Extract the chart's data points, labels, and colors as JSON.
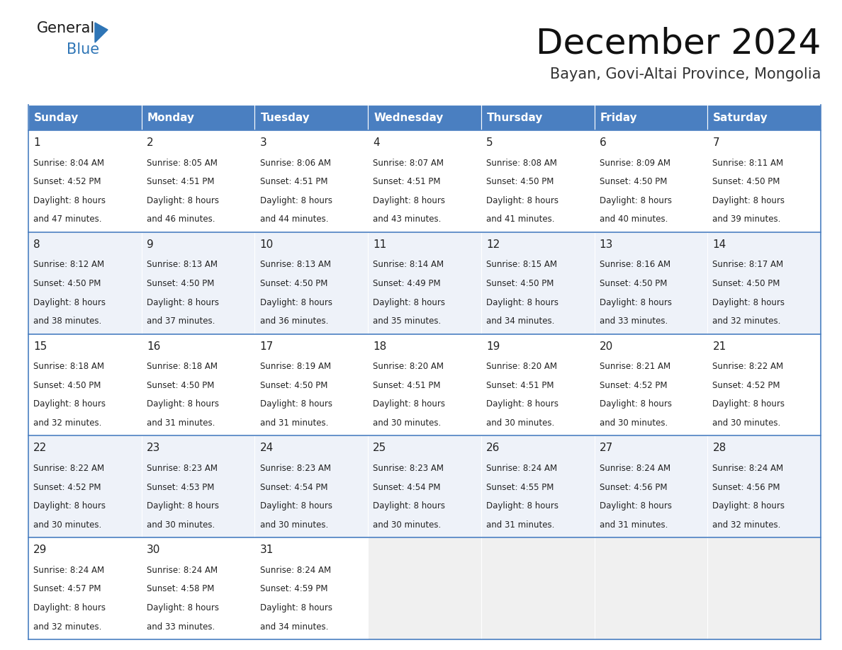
{
  "title": "December 2024",
  "subtitle": "Bayan, Govi-Altai Province, Mongolia",
  "header_bg_color": "#4A7FC1",
  "header_text_color": "#FFFFFF",
  "cell_border_color": "#4A7FC1",
  "row_bg_colors": [
    "#FFFFFF",
    "#EEF2F9"
  ],
  "last_row_empty_bg": "#F0F0F0",
  "text_color": "#333333",
  "day_names": [
    "Sunday",
    "Monday",
    "Tuesday",
    "Wednesday",
    "Thursday",
    "Friday",
    "Saturday"
  ],
  "weeks": [
    [
      {
        "day": 1,
        "sunrise": "8:04 AM",
        "sunset": "4:52 PM",
        "daylight": "8 hours\nand 47 minutes."
      },
      {
        "day": 2,
        "sunrise": "8:05 AM",
        "sunset": "4:51 PM",
        "daylight": "8 hours\nand 46 minutes."
      },
      {
        "day": 3,
        "sunrise": "8:06 AM",
        "sunset": "4:51 PM",
        "daylight": "8 hours\nand 44 minutes."
      },
      {
        "day": 4,
        "sunrise": "8:07 AM",
        "sunset": "4:51 PM",
        "daylight": "8 hours\nand 43 minutes."
      },
      {
        "day": 5,
        "sunrise": "8:08 AM",
        "sunset": "4:50 PM",
        "daylight": "8 hours\nand 41 minutes."
      },
      {
        "day": 6,
        "sunrise": "8:09 AM",
        "sunset": "4:50 PM",
        "daylight": "8 hours\nand 40 minutes."
      },
      {
        "day": 7,
        "sunrise": "8:11 AM",
        "sunset": "4:50 PM",
        "daylight": "8 hours\nand 39 minutes."
      }
    ],
    [
      {
        "day": 8,
        "sunrise": "8:12 AM",
        "sunset": "4:50 PM",
        "daylight": "8 hours\nand 38 minutes."
      },
      {
        "day": 9,
        "sunrise": "8:13 AM",
        "sunset": "4:50 PM",
        "daylight": "8 hours\nand 37 minutes."
      },
      {
        "day": 10,
        "sunrise": "8:13 AM",
        "sunset": "4:50 PM",
        "daylight": "8 hours\nand 36 minutes."
      },
      {
        "day": 11,
        "sunrise": "8:14 AM",
        "sunset": "4:49 PM",
        "daylight": "8 hours\nand 35 minutes."
      },
      {
        "day": 12,
        "sunrise": "8:15 AM",
        "sunset": "4:50 PM",
        "daylight": "8 hours\nand 34 minutes."
      },
      {
        "day": 13,
        "sunrise": "8:16 AM",
        "sunset": "4:50 PM",
        "daylight": "8 hours\nand 33 minutes."
      },
      {
        "day": 14,
        "sunrise": "8:17 AM",
        "sunset": "4:50 PM",
        "daylight": "8 hours\nand 32 minutes."
      }
    ],
    [
      {
        "day": 15,
        "sunrise": "8:18 AM",
        "sunset": "4:50 PM",
        "daylight": "8 hours\nand 32 minutes."
      },
      {
        "day": 16,
        "sunrise": "8:18 AM",
        "sunset": "4:50 PM",
        "daylight": "8 hours\nand 31 minutes."
      },
      {
        "day": 17,
        "sunrise": "8:19 AM",
        "sunset": "4:50 PM",
        "daylight": "8 hours\nand 31 minutes."
      },
      {
        "day": 18,
        "sunrise": "8:20 AM",
        "sunset": "4:51 PM",
        "daylight": "8 hours\nand 30 minutes."
      },
      {
        "day": 19,
        "sunrise": "8:20 AM",
        "sunset": "4:51 PM",
        "daylight": "8 hours\nand 30 minutes."
      },
      {
        "day": 20,
        "sunrise": "8:21 AM",
        "sunset": "4:52 PM",
        "daylight": "8 hours\nand 30 minutes."
      },
      {
        "day": 21,
        "sunrise": "8:22 AM",
        "sunset": "4:52 PM",
        "daylight": "8 hours\nand 30 minutes."
      }
    ],
    [
      {
        "day": 22,
        "sunrise": "8:22 AM",
        "sunset": "4:52 PM",
        "daylight": "8 hours\nand 30 minutes."
      },
      {
        "day": 23,
        "sunrise": "8:23 AM",
        "sunset": "4:53 PM",
        "daylight": "8 hours\nand 30 minutes."
      },
      {
        "day": 24,
        "sunrise": "8:23 AM",
        "sunset": "4:54 PM",
        "daylight": "8 hours\nand 30 minutes."
      },
      {
        "day": 25,
        "sunrise": "8:23 AM",
        "sunset": "4:54 PM",
        "daylight": "8 hours\nand 30 minutes."
      },
      {
        "day": 26,
        "sunrise": "8:24 AM",
        "sunset": "4:55 PM",
        "daylight": "8 hours\nand 31 minutes."
      },
      {
        "day": 27,
        "sunrise": "8:24 AM",
        "sunset": "4:56 PM",
        "daylight": "8 hours\nand 31 minutes."
      },
      {
        "day": 28,
        "sunrise": "8:24 AM",
        "sunset": "4:56 PM",
        "daylight": "8 hours\nand 32 minutes."
      }
    ],
    [
      {
        "day": 29,
        "sunrise": "8:24 AM",
        "sunset": "4:57 PM",
        "daylight": "8 hours\nand 32 minutes."
      },
      {
        "day": 30,
        "sunrise": "8:24 AM",
        "sunset": "4:58 PM",
        "daylight": "8 hours\nand 33 minutes."
      },
      {
        "day": 31,
        "sunrise": "8:24 AM",
        "sunset": "4:59 PM",
        "daylight": "8 hours\nand 34 minutes."
      },
      null,
      null,
      null,
      null
    ]
  ],
  "logo_general_color": "#1a1a1a",
  "logo_blue_color": "#2E75B6",
  "logo_triangle_color": "#2E75B6",
  "title_fontsize": 36,
  "subtitle_fontsize": 15,
  "header_fontsize": 11,
  "day_num_fontsize": 11,
  "cell_text_fontsize": 8.5
}
